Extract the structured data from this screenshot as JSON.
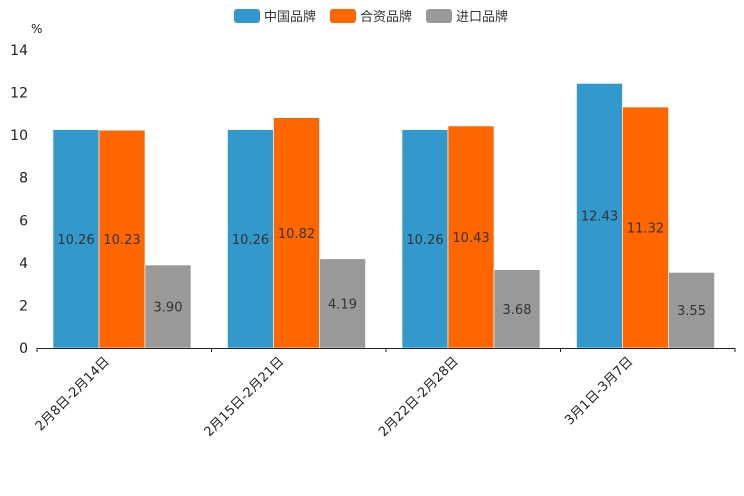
{
  "chart_data": {
    "type": "bar",
    "title": "",
    "xlabel": "",
    "ylabel": "%",
    "ylim": [
      0,
      14
    ],
    "yticks": [
      0,
      2,
      4,
      6,
      8,
      10,
      12,
      14
    ],
    "grid": false,
    "legend_position": "top-center",
    "categories": [
      "2月8日-2月14日",
      "2月15日-2月21日",
      "2月22日-2月28日",
      "3月1日-3月7日"
    ],
    "series": [
      {
        "name": "中国品牌",
        "color": "#3399cc",
        "values": [
          10.26,
          10.26,
          10.26,
          12.43
        ],
        "labels": [
          "10.26",
          "10.26",
          "10.26",
          "12.43"
        ]
      },
      {
        "name": "合资品牌",
        "color": "#ff6600",
        "values": [
          10.23,
          10.82,
          10.43,
          11.32
        ],
        "labels": [
          "10.23",
          "10.82",
          "10.43",
          "11.32"
        ]
      },
      {
        "name": "进口品牌",
        "color": "#999999",
        "values": [
          3.9,
          4.19,
          3.68,
          3.55
        ],
        "labels": [
          "3.90",
          "4.19",
          "3.68",
          "3.55"
        ]
      }
    ]
  }
}
